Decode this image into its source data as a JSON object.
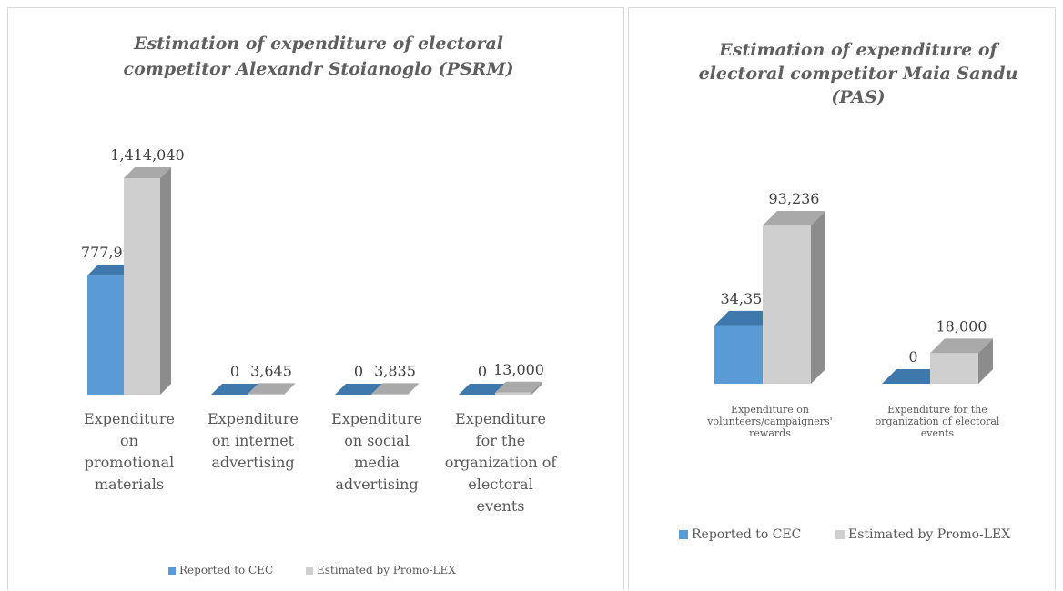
{
  "colors": {
    "reported": "#5b9bd5",
    "reported_top": "#3f78ad",
    "reported_side": "#2e5f8e",
    "estimated": "#d0cfd0",
    "estimated_top": "#a9a9a9",
    "estimated_side": "#8c8c8c"
  },
  "chart_data": [
    {
      "type": "bar",
      "title": "Estimation of expenditure of electoral competitor Alexandr Stoianoglo (PSRM)",
      "title_lines": [
        "Estimation of expenditure of electoral",
        "competitor Alexandr Stoianoglo (PSRM)"
      ],
      "categories": [
        "Expenditure on promotional materials",
        "Expenditure on internet advertising",
        "Expenditure on social media advertising",
        "Expenditure for the organization of electoral events"
      ],
      "category_lines": [
        [
          "Expenditure",
          "on",
          "promotional",
          "materials"
        ],
        [
          "Expenditure",
          "on internet",
          "advertising"
        ],
        [
          "Expenditure",
          "on social",
          "media",
          "advertising"
        ],
        [
          "Expenditure",
          "for the",
          "organization of",
          "electoral",
          "events"
        ]
      ],
      "series": [
        {
          "name": "Reported to CEC",
          "values": [
            777990,
            0,
            0,
            0
          ],
          "labels": [
            "777,990",
            "0",
            "0",
            "0"
          ]
        },
        {
          "name": "Estimated by Promo-LEX",
          "values": [
            1414040,
            3645,
            3835,
            13000
          ],
          "labels": [
            "1,414,040",
            "3,645",
            "3,835",
            "13,000"
          ]
        }
      ],
      "ylim": [
        0,
        1414040
      ],
      "grid": false,
      "legend": "bottom-center",
      "style": "3d-column"
    },
    {
      "type": "bar",
      "title": "Estimation of expenditure of electoral competitor Maia Sandu (PAS)",
      "title_lines": [
        "Estimation of expenditure of",
        "electoral competitor Maia Sandu",
        "(PAS)"
      ],
      "categories": [
        "Expenditure on volunteers/campaigners' rewards",
        "Expenditure for the organization of electoral events"
      ],
      "category_lines": [
        [
          "Expenditure on",
          "volunteers/campaigners'",
          "rewards"
        ],
        [
          "Expenditure for the",
          "organization of electoral",
          "events"
        ]
      ],
      "series": [
        {
          "name": "Reported to CEC",
          "values": [
            34350,
            0
          ],
          "labels": [
            "34,350",
            "0"
          ]
        },
        {
          "name": "Estimated by Promo-LEX",
          "values": [
            93236,
            18000
          ],
          "labels": [
            "93,236",
            "18,000"
          ]
        }
      ],
      "ylim": [
        0,
        93236
      ],
      "grid": false,
      "legend": "bottom-left",
      "style": "3d-column"
    }
  ]
}
